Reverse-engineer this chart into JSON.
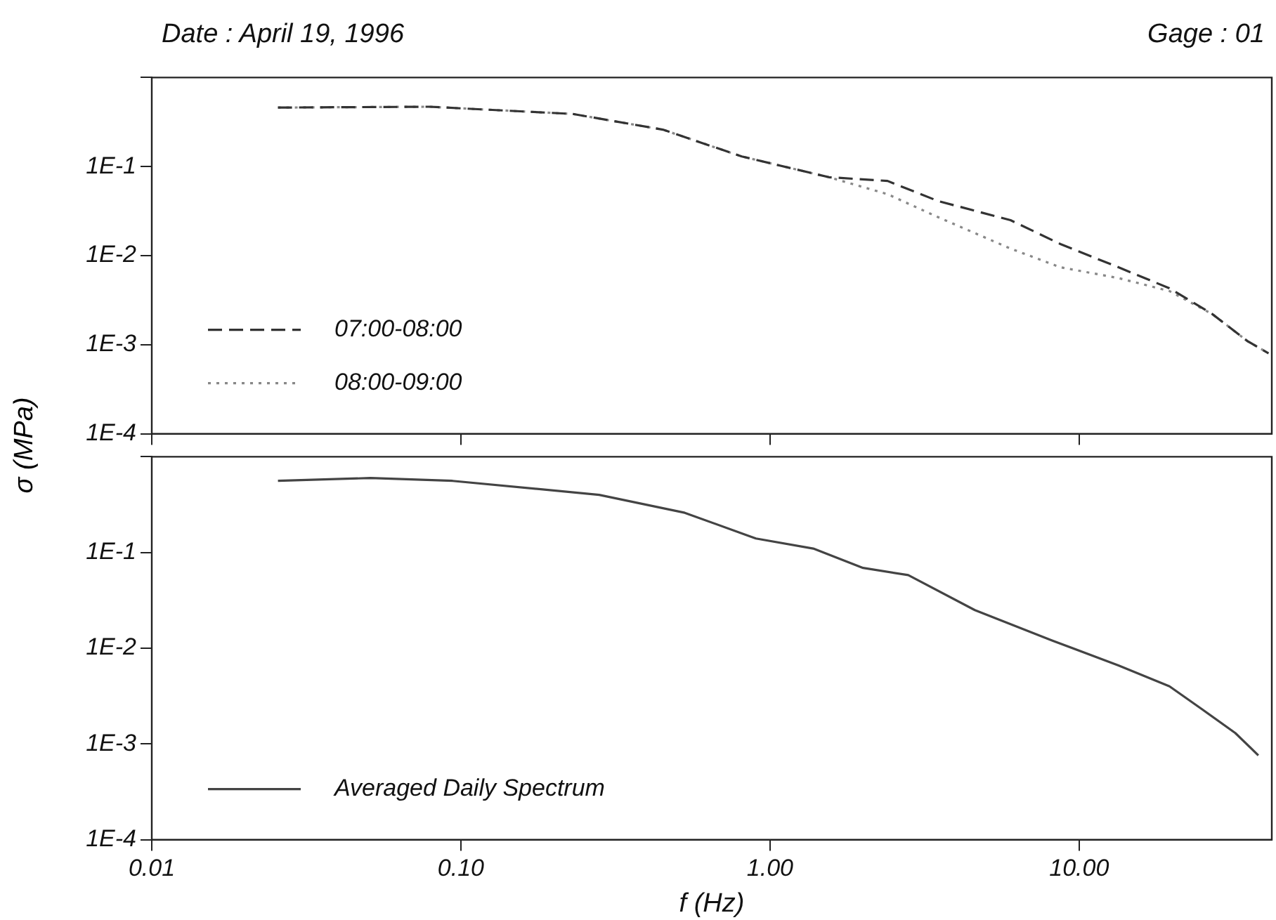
{
  "chart_data": [
    {
      "type": "line",
      "title": "Date : April 19, 1996",
      "annotations": [
        "Gage : 01"
      ],
      "ylabel": "σ (MPa)",
      "log": "xy",
      "grid": false,
      "legend": "bottom left",
      "tick_labels": "y",
      "marker": "none",
      "xlim": [
        0.01,
        42
      ],
      "xticks": [
        0.01,
        0.1,
        1,
        10
      ],
      "ylim": [
        0.0001,
        1
      ],
      "yticks": [
        {
          "value": 0.0001,
          "label": "1E-4"
        },
        {
          "value": 0.001,
          "label": "1E-3"
        },
        {
          "value": 0.01,
          "label": "1E-2"
        },
        {
          "value": 0.1,
          "label": "1E-1"
        },
        {
          "value": 1,
          "label": null
        }
      ],
      "series": [
        {
          "name": "07:00-08:00",
          "color": "#333333",
          "line_style": "dashed",
          "x": [
            0.0256,
            0.079,
            0.23,
            0.45,
            0.81,
            1.55,
            2.4,
            3.5,
            6.0,
            8.7,
            13.4,
            19.6,
            27,
            35,
            41
          ],
          "values": [
            0.46,
            0.47,
            0.39,
            0.26,
            0.13,
            0.076,
            0.069,
            0.041,
            0.025,
            0.0135,
            0.0074,
            0.0043,
            0.0022,
            0.0011,
            0.0008
          ]
        },
        {
          "name": "08:00-09:00",
          "color": "#888888",
          "line_style": "dotted",
          "x": [
            0.0256,
            0.079,
            0.23,
            0.45,
            0.81,
            1.55,
            2.4,
            3.5,
            6.0,
            8.7,
            13.4,
            19.6,
            27,
            35,
            41
          ],
          "values": [
            0.46,
            0.47,
            0.39,
            0.26,
            0.13,
            0.076,
            0.049,
            0.027,
            0.012,
            0.0074,
            0.0056,
            0.004,
            0.0022,
            0.0011,
            0.0008
          ]
        }
      ]
    },
    {
      "type": "line",
      "xlabel": "f (Hz)",
      "log": "xy",
      "grid": false,
      "legend": "bottom left",
      "marker": "none",
      "xlim": [
        0.01,
        42
      ],
      "xticks": [
        {
          "value": 0.01,
          "label": "0.01"
        },
        {
          "value": 0.1,
          "label": "0.10"
        },
        {
          "value": 1,
          "label": "1.00"
        },
        {
          "value": 10,
          "label": "10.00"
        }
      ],
      "ylim": [
        0.0001,
        1
      ],
      "yticks": [
        {
          "value": 0.0001,
          "label": "1E-4"
        },
        {
          "value": 0.001,
          "label": "1E-3"
        },
        {
          "value": 0.01,
          "label": "1E-2"
        },
        {
          "value": 0.1,
          "label": "1E-1"
        },
        {
          "value": 1,
          "label": null
        }
      ],
      "series": [
        {
          "name": "Averaged Daily Spectrum",
          "color": "#444444",
          "line_style": "solid",
          "x": [
            0.0256,
            0.051,
            0.094,
            0.28,
            0.53,
            0.9,
            1.38,
            2.0,
            2.8,
            4.6,
            8.2,
            13.4,
            19.6,
            25,
            32,
            38
          ],
          "values": [
            0.56,
            0.6,
            0.56,
            0.4,
            0.26,
            0.14,
            0.11,
            0.069,
            0.058,
            0.025,
            0.012,
            0.0066,
            0.004,
            0.0023,
            0.0013,
            0.00076
          ]
        }
      ]
    }
  ]
}
